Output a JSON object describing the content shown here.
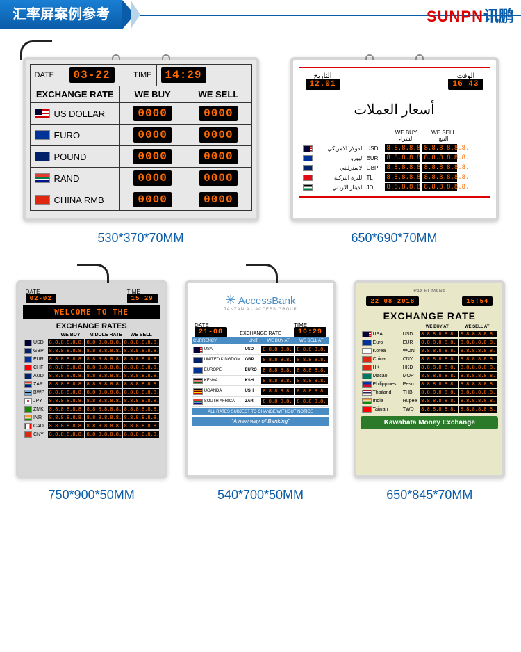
{
  "header_title": "汇率屏案例参考",
  "brand_en": "SUNPN",
  "brand_cn": "讯鹏",
  "led_color": "#ff6a00",
  "led_bg": "#000000",
  "caption_color": "#0a5ca8",
  "p1": {
    "caption": "530*370*70MM",
    "date_label": "DATE",
    "date": "03-22",
    "time_label": "TIME",
    "time": "14:29",
    "col1": "EXCHANGE RATE",
    "col2": "WE BUY",
    "col3": "WE SELL",
    "rows": [
      {
        "flag": "us",
        "name": "US DOLLAR",
        "buy": "0000",
        "sell": "0000"
      },
      {
        "flag": "eu",
        "name": "EURO",
        "buy": "0000",
        "sell": "0000"
      },
      {
        "flag": "uk",
        "name": "POUND",
        "buy": "0000",
        "sell": "0000"
      },
      {
        "flag": "za",
        "name": "RAND",
        "buy": "0000",
        "sell": "0000"
      },
      {
        "flag": "cn",
        "name": "CHINA RMB",
        "buy": "0000",
        "sell": "0000"
      }
    ]
  },
  "p2": {
    "caption": "650*690*70MM",
    "date_label": "التاريخ",
    "date": "12.01",
    "time_label": "الوقت",
    "time": "16 43",
    "title": "أسعار العملات",
    "buy_label": "WE BUY الشراء",
    "sell_label": "WE SELL البيع",
    "rows": [
      {
        "flag": "us",
        "name": "الدولار الامريكي",
        "code": "USD",
        "buy": "8.8.8.8.8.8.",
        "sell": "8.8.8.8.8.8."
      },
      {
        "flag": "eu",
        "name": "اليورو",
        "code": "EUR",
        "buy": "8.8.8.8.8.8.",
        "sell": "8.8.8.8.8.8."
      },
      {
        "flag": "uk",
        "name": "الاسترليني",
        "code": "GBP",
        "buy": "8.8.8.8.8.8.",
        "sell": "8.8.8.8.8.8."
      },
      {
        "flag": "tr",
        "name": "الليرة التركية",
        "code": "TL",
        "buy": "8.8.8.8.8.8.",
        "sell": "8.8.8.8.8.8."
      },
      {
        "flag": "jo",
        "name": "الدينار الاردني",
        "code": "JD",
        "buy": "8.8.8.8.8.8.",
        "sell": "8.8.8.8.8.8."
      }
    ]
  },
  "p3": {
    "caption": "750*900*50MM",
    "date_label": "DATE",
    "date": "02-02",
    "time_label": "TIME",
    "time": "15 29",
    "banner": "WELCOME TO THE",
    "title": "EXCHANGE RATES",
    "col_buy": "WE BUY",
    "col_mid": "MIDDLE RATE",
    "col_sell": "WE SELL",
    "rows": [
      {
        "flag": "us",
        "code": "USD"
      },
      {
        "flag": "uk",
        "code": "GBP"
      },
      {
        "flag": "eu",
        "code": "EUR"
      },
      {
        "flag": "ch",
        "code": "CHF"
      },
      {
        "flag": "au",
        "code": "AUD"
      },
      {
        "flag": "za",
        "code": "ZAR"
      },
      {
        "flag": "bw",
        "code": "BWP"
      },
      {
        "flag": "jp",
        "code": "JPY"
      },
      {
        "flag": "zm",
        "code": "ZMK"
      },
      {
        "flag": "in",
        "code": "INR"
      },
      {
        "flag": "ca",
        "code": "CAD"
      },
      {
        "flag": "cn",
        "code": "CNY"
      }
    ],
    "led_val": "8.8.8.8.8.8."
  },
  "p4": {
    "caption": "540*700*50MM",
    "logo": "AccessBank",
    "logo_sub": "TANZANIA · ACCESS GROUP",
    "date_label": "DATE",
    "date": "21-08",
    "rate_label": "EXCHANGE RATE",
    "time_label": "TIME",
    "time": "10:29",
    "col1": "CURRENCY",
    "col2": "UNIT",
    "col3": "WE BUY AT",
    "col4": "WE SELL AT",
    "rows": [
      {
        "flag": "us",
        "name": "USA",
        "code": "USD"
      },
      {
        "flag": "uk",
        "name": "UNITED KINGDOM",
        "code": "GBP"
      },
      {
        "flag": "eu",
        "name": "EUROPE",
        "code": "EURO"
      },
      {
        "flag": "ke",
        "name": "KENYA",
        "code": "KSH"
      },
      {
        "flag": "ug",
        "name": "UGANDA",
        "code": "USH"
      },
      {
        "flag": "za",
        "name": "SOUTH AFRICA",
        "code": "ZAR"
      }
    ],
    "led_val": "8.8.8.8.8.",
    "foot1": "ALL RATES SUBJECT TO CHANGE WITHOUT NOTICE",
    "foot2": "\"A new way of Banking\""
  },
  "p5": {
    "caption": "650*845*70MM",
    "pax": "PAX ROMANA",
    "date": "22 08 2018",
    "time": "15:54",
    "title": "EXCHANGE RATE",
    "col_buy": "WE BUY AT",
    "col_sell": "WE SELL AT",
    "rows": [
      {
        "flag": "us",
        "name": "USA",
        "code": "USD"
      },
      {
        "flag": "eu",
        "name": "Euro",
        "code": "EUR"
      },
      {
        "flag": "kr",
        "name": "Korea",
        "code": "WON"
      },
      {
        "flag": "cn",
        "name": "China",
        "code": "CNY"
      },
      {
        "flag": "hk",
        "name": "HK",
        "code": "HKD"
      },
      {
        "flag": "mo",
        "name": "Macao",
        "code": "MOP"
      },
      {
        "flag": "ph",
        "name": "Philippines",
        "code": "Peso"
      },
      {
        "flag": "th",
        "name": "Thailand",
        "code": "THB"
      },
      {
        "flag": "in",
        "name": "India",
        "code": "Rupee"
      },
      {
        "flag": "tw",
        "name": "Taiwan",
        "code": "TWD"
      }
    ],
    "led_val": "8.8.8.8.8.8.",
    "foot": "Kawabata Money Exchange"
  }
}
